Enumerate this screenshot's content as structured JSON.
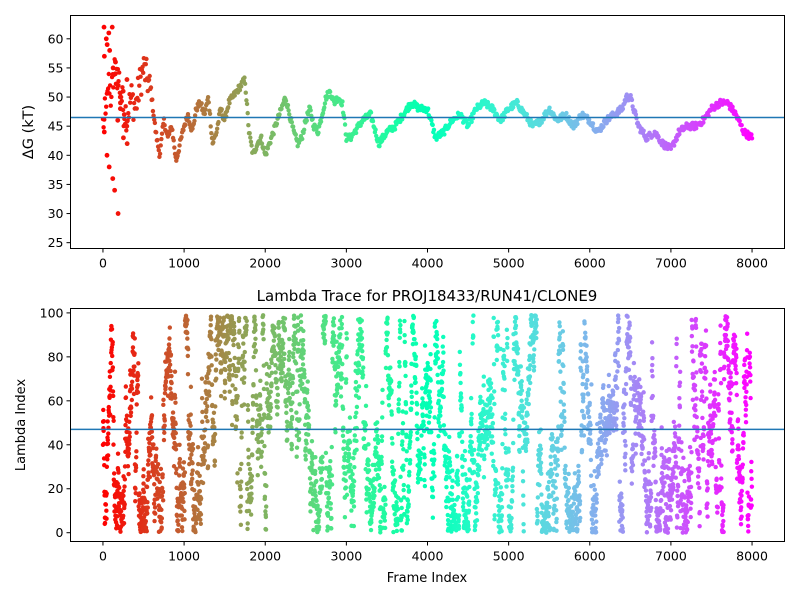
{
  "chart_data": [
    {
      "type": "scatter",
      "title": "",
      "xlabel": "",
      "ylabel": "ΔG (kT)",
      "xlim": [
        -400,
        8400
      ],
      "ylim": [
        24,
        64
      ],
      "xticks": [
        0,
        1000,
        2000,
        3000,
        4000,
        5000,
        6000,
        7000,
        8000
      ],
      "yticks": [
        25,
        30,
        35,
        40,
        45,
        50,
        55,
        60
      ],
      "hline": 46.5,
      "hline_color": "#1f77b4",
      "colormap": "rainbow (reversed along frame index: red at 0, violet at 8000)",
      "grid": false,
      "trace_x": [
        0,
        50,
        100,
        150,
        200,
        250,
        300,
        350,
        400,
        450,
        500,
        550,
        600,
        650,
        700,
        750,
        800,
        850,
        900,
        950,
        1000,
        1050,
        1100,
        1150,
        1200,
        1250,
        1300,
        1350,
        1400,
        1450,
        1500,
        1550,
        1600,
        1650,
        1700,
        1750,
        1800,
        1850,
        1900,
        1950,
        2000,
        2050,
        2100,
        2150,
        2200,
        2250,
        2300,
        2350,
        2400,
        2450,
        2500,
        2550,
        2600,
        2650,
        2700,
        2750,
        2800,
        2850,
        2900,
        2950,
        3000,
        3050,
        3100,
        3200,
        3300,
        3400,
        3500,
        3600,
        3700,
        3800,
        3900,
        4000,
        4100,
        4200,
        4300,
        4400,
        4500,
        4600,
        4700,
        4800,
        4900,
        5000,
        5100,
        5200,
        5300,
        5400,
        5500,
        5600,
        5700,
        5800,
        5900,
        6000,
        6100,
        6200,
        6300,
        6400,
        6450,
        6500,
        6600,
        6700,
        6800,
        6900,
        7000,
        7100,
        7200,
        7300,
        7400,
        7500,
        7600,
        7700,
        7800,
        7900,
        8000
      ],
      "trace_y": [
        44,
        52,
        50,
        55,
        53,
        48,
        47,
        50,
        48,
        52,
        55,
        53,
        50,
        44,
        40,
        46,
        43,
        45,
        39,
        42,
        45,
        47,
        44,
        48,
        49,
        47,
        50,
        42,
        44,
        48,
        46,
        49,
        50,
        51,
        52,
        53,
        44,
        40,
        42,
        43,
        40,
        42,
        44,
        46,
        48,
        50,
        47,
        44,
        42,
        43,
        46,
        48,
        45,
        44,
        47,
        50,
        51,
        49,
        50,
        49,
        43,
        43,
        44,
        46,
        47,
        42,
        44,
        45,
        47,
        49,
        48,
        48,
        43,
        44,
        46,
        47,
        45,
        48,
        49,
        48,
        46,
        48,
        49,
        47,
        45,
        46,
        48,
        46,
        47,
        45,
        47,
        46,
        44,
        46,
        47,
        48,
        50,
        50,
        45,
        43,
        44,
        42,
        41,
        44,
        45,
        45,
        46,
        48,
        49,
        49,
        47,
        44,
        43
      ],
      "early_scatter_y": [
        62,
        60,
        58,
        55,
        54,
        52,
        50,
        47,
        45,
        44,
        40,
        38,
        36,
        34,
        30,
        48,
        51,
        53,
        57,
        59,
        61,
        62,
        56,
        46,
        49,
        43,
        42
      ]
    },
    {
      "type": "scatter",
      "title": "Lambda Trace for PROJ18433/RUN41/CLONE9",
      "xlabel": "Frame Index",
      "ylabel": "Lambda Index",
      "xlim": [
        -400,
        8400
      ],
      "ylim": [
        -4,
        102
      ],
      "xticks": [
        0,
        1000,
        2000,
        3000,
        4000,
        5000,
        6000,
        7000,
        8000
      ],
      "yticks": [
        0,
        20,
        40,
        60,
        80,
        100
      ],
      "hline": 47,
      "hline_color": "#1f77b4",
      "colormap": "rainbow (reversed along frame index: red at 0, violet at 8000)",
      "grid": false,
      "points": 4000
    }
  ]
}
